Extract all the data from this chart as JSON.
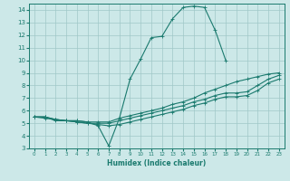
{
  "title": "",
  "xlabel": "Humidex (Indice chaleur)",
  "xlim": [
    -0.5,
    23.5
  ],
  "ylim": [
    3,
    14.5
  ],
  "xticks": [
    0,
    1,
    2,
    3,
    4,
    5,
    6,
    7,
    8,
    9,
    10,
    11,
    12,
    13,
    14,
    15,
    16,
    17,
    18,
    19,
    20,
    21,
    22,
    23
  ],
  "yticks": [
    3,
    4,
    5,
    6,
    7,
    8,
    9,
    10,
    11,
    12,
    13,
    14
  ],
  "bg_color": "#cce8e8",
  "grid_color": "#a0c8c8",
  "line_color": "#1a7a6e",
  "lines": [
    {
      "x": [
        0,
        1,
        2,
        3,
        4,
        5,
        6,
        7,
        8,
        9,
        10,
        11,
        12,
        13,
        14,
        15,
        16,
        17,
        18
      ],
      "y": [
        5.5,
        5.5,
        5.2,
        5.2,
        5.2,
        5.1,
        4.8,
        3.2,
        5.4,
        8.5,
        10.1,
        11.8,
        11.9,
        13.3,
        14.2,
        14.3,
        14.2,
        12.4,
        10.0
      ]
    },
    {
      "x": [
        0,
        1,
        2,
        3,
        4,
        5,
        6,
        7,
        8,
        9,
        10,
        11,
        12,
        13,
        14,
        15,
        16,
        17,
        18,
        19,
        20,
        21,
        22,
        23
      ],
      "y": [
        5.5,
        5.5,
        5.3,
        5.2,
        5.2,
        5.1,
        5.1,
        5.1,
        5.4,
        5.6,
        5.8,
        6.0,
        6.2,
        6.5,
        6.7,
        7.0,
        7.4,
        7.7,
        8.0,
        8.3,
        8.5,
        8.7,
        8.9,
        9.0
      ]
    },
    {
      "x": [
        0,
        1,
        2,
        3,
        4,
        5,
        6,
        7,
        8,
        9,
        10,
        11,
        12,
        13,
        14,
        15,
        16,
        17,
        18,
        19,
        20,
        21,
        22,
        23
      ],
      "y": [
        5.5,
        5.5,
        5.3,
        5.2,
        5.1,
        5.0,
        5.0,
        5.0,
        5.2,
        5.4,
        5.6,
        5.8,
        6.0,
        6.2,
        6.4,
        6.7,
        6.9,
        7.2,
        7.4,
        7.4,
        7.5,
        8.0,
        8.5,
        8.8
      ]
    },
    {
      "x": [
        0,
        1,
        2,
        3,
        4,
        5,
        6,
        7,
        8,
        9,
        10,
        11,
        12,
        13,
        14,
        15,
        16,
        17,
        18,
        19,
        20,
        21,
        22,
        23
      ],
      "y": [
        5.5,
        5.4,
        5.3,
        5.2,
        5.1,
        5.0,
        4.9,
        4.8,
        4.9,
        5.1,
        5.3,
        5.5,
        5.7,
        5.9,
        6.1,
        6.4,
        6.6,
        6.9,
        7.1,
        7.1,
        7.2,
        7.6,
        8.2,
        8.5
      ]
    }
  ]
}
